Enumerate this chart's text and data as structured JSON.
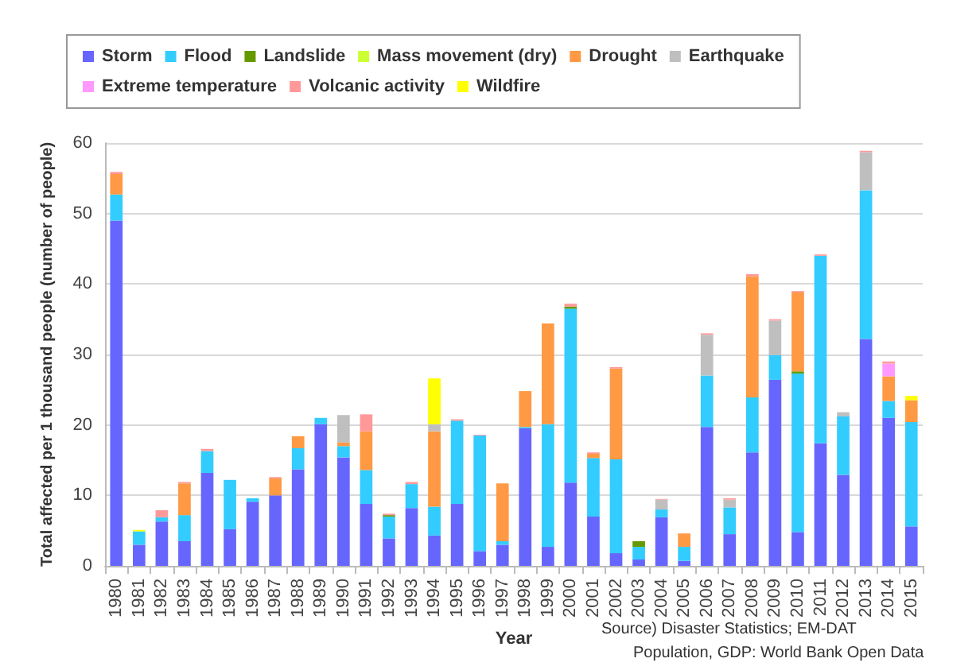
{
  "chart_data": {
    "type": "bar",
    "stacked": true,
    "xlabel": "Year",
    "ylabel": "Total affected per 1 thousand people (number of people)",
    "categories": [
      "1980",
      "1981",
      "1982",
      "1983",
      "1984",
      "1985",
      "1986",
      "1987",
      "1988",
      "1989",
      "1990",
      "1991",
      "1992",
      "1993",
      "1994",
      "1995",
      "1996",
      "1997",
      "1998",
      "1999",
      "2000",
      "2001",
      "2002",
      "2003",
      "2004",
      "2005",
      "2006",
      "2007",
      "2008",
      "2009",
      "2010",
      "2011",
      "2012",
      "2013",
      "2014",
      "2015"
    ],
    "series": [
      {
        "name": "Storm",
        "color": "#6666ff",
        "values": [
          49,
          3,
          6.3,
          3.5,
          13.2,
          5.2,
          9.1,
          10,
          13.7,
          20.1,
          15.4,
          8.8,
          3.9,
          8.2,
          4.3,
          8.8,
          2.1,
          3,
          19.5,
          2.7,
          11.8,
          7,
          1.8,
          0.9,
          6.9,
          0.7,
          19.7,
          4.5,
          16.1,
          26.4,
          4.8,
          17.4,
          12.9,
          32.2,
          21,
          5.6
        ]
      },
      {
        "name": "Flood",
        "color": "#33ccff",
        "values": [
          3.7,
          1.9,
          0.6,
          3.7,
          3.1,
          7,
          0.5,
          0,
          3,
          0.9,
          1.6,
          4.8,
          3.1,
          3.4,
          4.1,
          11.8,
          16.4,
          0.5,
          0.2,
          17.4,
          24.7,
          8.3,
          13.3,
          1.8,
          1.1,
          2,
          7.3,
          3.8,
          7.8,
          3.5,
          22.5,
          26.6,
          8.3,
          21.1,
          2.4,
          14.8
        ]
      },
      {
        "name": "Landslide",
        "color": "#669900",
        "values": [
          0,
          0,
          0,
          0,
          0,
          0,
          0,
          0,
          0,
          0,
          0,
          0,
          0.2,
          0,
          0,
          0,
          0,
          0,
          0,
          0,
          0.3,
          0,
          0,
          0.8,
          0,
          0,
          0,
          0,
          0,
          0,
          0.3,
          0,
          0,
          0,
          0,
          0
        ]
      },
      {
        "name": "Mass movement (dry)",
        "color": "#ccff33",
        "values": [
          0,
          0,
          0,
          0,
          0,
          0,
          0,
          0,
          0,
          0,
          0,
          0,
          0,
          0,
          0,
          0,
          0,
          0,
          0,
          0,
          0,
          0,
          0,
          0,
          0,
          0,
          0,
          0,
          0,
          0,
          0,
          0,
          0,
          0,
          0,
          0
        ]
      },
      {
        "name": "Drought",
        "color": "#ff9944",
        "values": [
          2.9,
          0,
          0,
          4.5,
          0,
          0,
          0,
          2.4,
          1.7,
          0,
          0.5,
          5.5,
          0,
          0,
          10.7,
          0,
          0,
          8.2,
          5.1,
          14.3,
          0,
          0.6,
          12.9,
          0,
          0,
          1.9,
          0,
          0,
          17.2,
          0,
          11.2,
          0,
          0,
          0,
          3.5,
          3.1
        ]
      },
      {
        "name": "Earthquake",
        "color": "#bfbfbf",
        "values": [
          0,
          0,
          0,
          0,
          0,
          0,
          0,
          0,
          0,
          0,
          3.9,
          0,
          0,
          0,
          1,
          0,
          0,
          0,
          0,
          0,
          0,
          0,
          0,
          0,
          1.4,
          0,
          5.8,
          1.1,
          0,
          4.9,
          0,
          0,
          0.6,
          5.4,
          0,
          0
        ]
      },
      {
        "name": "Extreme temperature",
        "color": "#ff99ff",
        "values": [
          0,
          0,
          0,
          0,
          0,
          0,
          0,
          0,
          0,
          0,
          0,
          0,
          0,
          0,
          0,
          0,
          0,
          0,
          0,
          0,
          0,
          0,
          0,
          0,
          0,
          0,
          0,
          0,
          0,
          0,
          0,
          0,
          0,
          0,
          1.8,
          0
        ]
      },
      {
        "name": "Volcanic activity",
        "color": "#ff9999",
        "values": [
          0.3,
          0,
          1,
          0.2,
          0.3,
          0,
          0,
          0.2,
          0,
          0,
          0,
          2.4,
          0.2,
          0.3,
          0,
          0.2,
          0.1,
          0,
          0,
          0,
          0.4,
          0.2,
          0.2,
          0,
          0.1,
          0,
          0.2,
          0.2,
          0.3,
          0.2,
          0.2,
          0.2,
          0,
          0.2,
          0.3,
          0
        ]
      },
      {
        "name": "Wildfire",
        "color": "#ffff00",
        "values": [
          0,
          0.2,
          0,
          0,
          0,
          0,
          0,
          0,
          0,
          0,
          0,
          0,
          0,
          0,
          6.5,
          0,
          0,
          0,
          0,
          0,
          0,
          0,
          0,
          0,
          0,
          0,
          0,
          0,
          0,
          0,
          0,
          0,
          0,
          0,
          0,
          0.6
        ]
      }
    ],
    "ylim": [
      0,
      60
    ],
    "yticks": [
      0,
      10,
      20,
      30,
      40,
      50,
      60
    ],
    "grid": "y",
    "legend": "top",
    "annotations": [
      "Source) Disaster Statistics; EM-DAT",
      "Population, GDP: World Bank Open Data"
    ]
  }
}
